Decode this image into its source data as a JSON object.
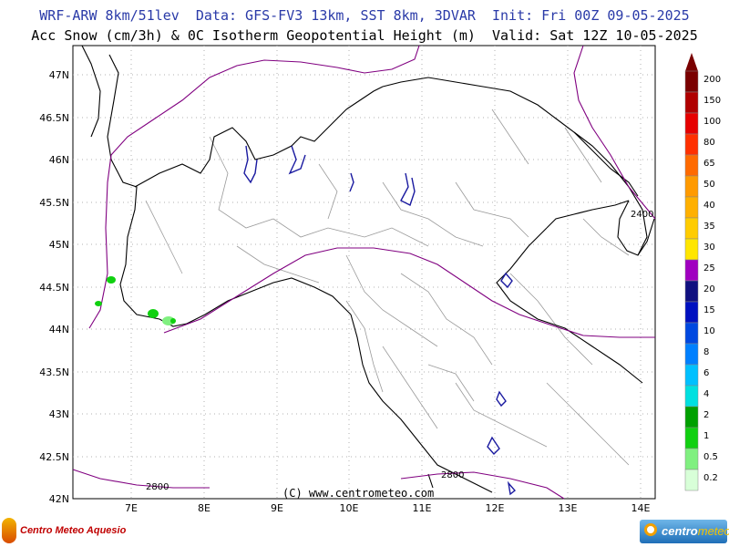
{
  "header": {
    "line1": "WRF-ARW 8km/51lev  Data: GFS-FV3 13km, SST 8km, 3DVAR  Init: Fri 00Z 09-05-2025",
    "line2": "Acc Snow (cm/3h) & 0C Isotherm Geopotential Height (m)  Valid: Sat 12Z 10-05-2025"
  },
  "map": {
    "lat_labels": [
      "47N",
      "46.5N",
      "46N",
      "45.5N",
      "45N",
      "44.5N",
      "44N",
      "43.5N",
      "43N",
      "42.5N",
      "42N"
    ],
    "lon_labels": [
      "7E",
      "8E",
      "9E",
      "10E",
      "11E",
      "12E",
      "13E",
      "14E"
    ],
    "contour_labels": [
      "2400",
      "2800",
      "2800"
    ],
    "isotherm_color": "#800080",
    "border_color": "#000000",
    "province_color": "#9a9a9a",
    "lake_color": "#1a1aa0"
  },
  "colorbar": {
    "levels": [
      "200",
      "150",
      "100",
      "80",
      "65",
      "50",
      "40",
      "35",
      "30",
      "25",
      "20",
      "15",
      "10",
      "8",
      "6",
      "4",
      "2",
      "1",
      "0.5",
      "0.2"
    ],
    "colors": [
      "#7a0000",
      "#b00000",
      "#e60000",
      "#ff3000",
      "#ff6a00",
      "#ff9a00",
      "#ffb000",
      "#ffcc00",
      "#ffe600",
      "#a000c0",
      "#101080",
      "#0010c0",
      "#0048e0",
      "#0080ff",
      "#00c0ff",
      "#00e0e0",
      "#00a000",
      "#10d010",
      "#80f080",
      "#d8ffd8"
    ]
  },
  "footer": {
    "copyright": "(C) www.centrometeo.com",
    "logo_left": "Centro Meteo Aquesio",
    "logo_right_a": "centro",
    "logo_right_b": "meteo"
  }
}
